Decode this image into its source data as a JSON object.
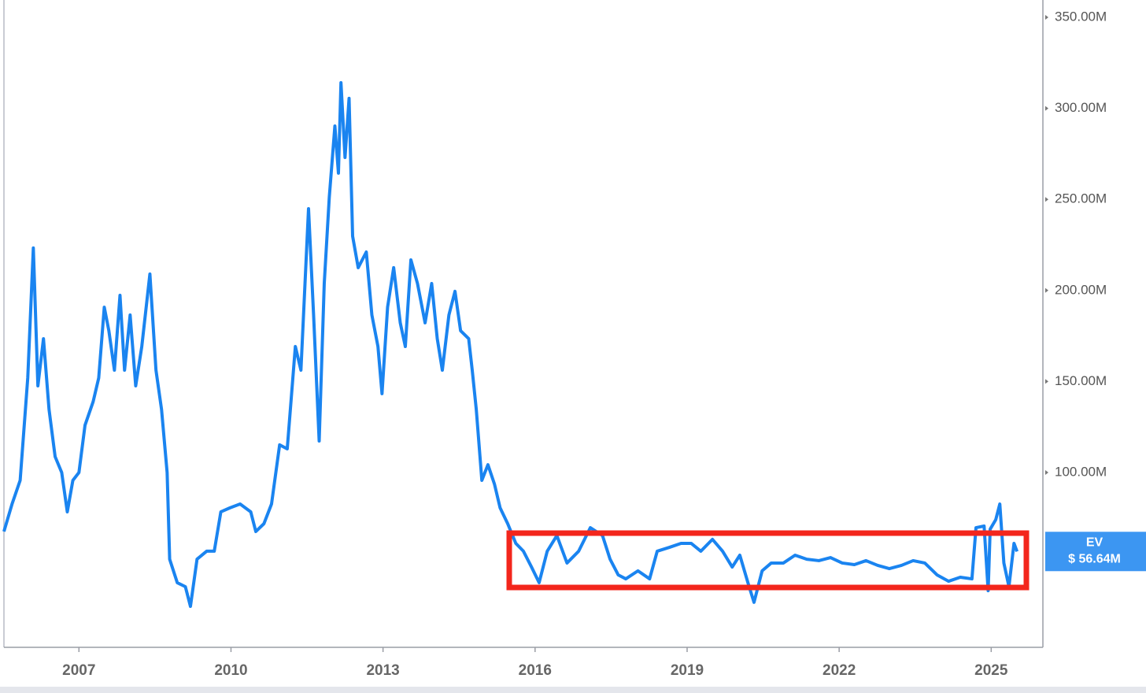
{
  "chart_data": {
    "type": "line",
    "x": [
      2005.52,
      2005.68,
      2005.84,
      2005.99,
      2006.1,
      2006.19,
      2006.3,
      2006.41,
      2006.53,
      2006.66,
      2006.77,
      2006.88,
      2007.0,
      2007.12,
      2007.28,
      2007.39,
      2007.5,
      2007.59,
      2007.7,
      2007.81,
      2007.9,
      2008.01,
      2008.12,
      2008.24,
      2008.4,
      2008.52,
      2008.63,
      2008.74,
      2008.79,
      2008.94,
      2009.1,
      2009.2,
      2009.33,
      2009.52,
      2009.67,
      2009.8,
      2009.98,
      2010.18,
      2010.39,
      2010.49,
      2010.65,
      2010.8,
      2010.96,
      2011.11,
      2011.27,
      2011.38,
      2011.53,
      2011.63,
      2011.74,
      2011.84,
      2011.94,
      2012.05,
      2012.12,
      2012.17,
      2012.25,
      2012.33,
      2012.4,
      2012.51,
      2012.67,
      2012.78,
      2012.9,
      2012.98,
      2013.09,
      2013.21,
      2013.34,
      2013.44,
      2013.55,
      2013.68,
      2013.83,
      2013.96,
      2014.07,
      2014.17,
      2014.3,
      2014.42,
      2014.53,
      2014.69,
      2014.76,
      2014.84,
      2014.95,
      2015.07,
      2015.2,
      2015.31,
      2015.46,
      2015.62,
      2015.77,
      2015.93,
      2016.08,
      2016.24,
      2016.43,
      2016.63,
      2016.86,
      2017.09,
      2017.33,
      2017.48,
      2017.64,
      2017.79,
      2018.03,
      2018.26,
      2018.41,
      2018.65,
      2018.88,
      2019.08,
      2019.27,
      2019.5,
      2019.7,
      2019.89,
      2020.04,
      2020.2,
      2020.32,
      2020.48,
      2020.66,
      2020.9,
      2021.13,
      2021.36,
      2021.6,
      2021.83,
      2022.06,
      2022.3,
      2022.53,
      2022.76,
      2022.99,
      2023.23,
      2023.46,
      2023.69,
      2023.93,
      2024.16,
      2024.39,
      2024.62,
      2024.7,
      2024.86,
      2024.94,
      2024.98,
      2025.09,
      2025.17,
      2025.25,
      2025.35,
      2025.45,
      2025.51
    ],
    "series": [
      {
        "name": "EV",
        "color": "#1a84f0",
        "values": [
          67.6,
          82.7,
          95.7,
          151.9,
          223.3,
          147.6,
          173.5,
          134.6,
          108.7,
          100.0,
          78.4,
          95.7,
          100.0,
          126.0,
          138.9,
          151.9,
          190.8,
          177.9,
          156.2,
          197.3,
          156.2,
          186.5,
          147.6,
          169.2,
          209.0,
          156.2,
          134.6,
          100.0,
          52.4,
          39.5,
          37.3,
          26.5,
          52.4,
          56.8,
          56.8,
          78.4,
          80.6,
          82.7,
          78.4,
          67.6,
          71.9,
          82.7,
          115.2,
          113.0,
          169.2,
          156.2,
          244.9,
          186.5,
          117.3,
          203.8,
          251.4,
          290.3,
          264.4,
          314.1,
          273.0,
          305.5,
          229.8,
          212.5,
          221.1,
          186.5,
          169.2,
          143.3,
          190.8,
          212.5,
          182.2,
          169.2,
          216.8,
          203.8,
          182.2,
          203.8,
          173.5,
          156.2,
          186.5,
          199.5,
          177.9,
          173.5,
          156.2,
          134.6,
          95.7,
          104.3,
          93.5,
          80.6,
          71.9,
          61.1,
          56.8,
          48.1,
          39.5,
          56.8,
          65.4,
          50.3,
          56.8,
          69.7,
          65.4,
          52.4,
          43.8,
          41.6,
          46.0,
          41.6,
          56.8,
          58.9,
          61.1,
          61.1,
          56.8,
          63.3,
          56.8,
          48.1,
          54.6,
          39.5,
          28.7,
          46.0,
          50.3,
          50.3,
          54.6,
          52.4,
          51.6,
          53.3,
          50.3,
          49.4,
          51.6,
          49.0,
          47.2,
          49.0,
          51.6,
          50.3,
          43.8,
          40.3,
          42.5,
          41.6,
          69.7,
          70.6,
          35.1,
          68.9,
          74.1,
          82.7,
          50.3,
          37.3,
          61.1,
          56.64
        ]
      }
    ],
    "last_value_label": "$ 56.64M",
    "xlim": [
      2005.52,
      2026.02
    ],
    "xticks": [
      2007,
      2010,
      2013,
      2016,
      2019,
      2022,
      2025
    ],
    "ylim": [
      4,
      359.5
    ],
    "yticks": [
      {
        "value": 100,
        "label": "100.00M"
      },
      {
        "value": 150,
        "label": "150.00M"
      },
      {
        "value": 200,
        "label": "200.00M"
      },
      {
        "value": 250,
        "label": "250.00M"
      },
      {
        "value": 300,
        "label": "300.00M"
      },
      {
        "value": 350,
        "label": "350.00M"
      }
    ]
  }
}
